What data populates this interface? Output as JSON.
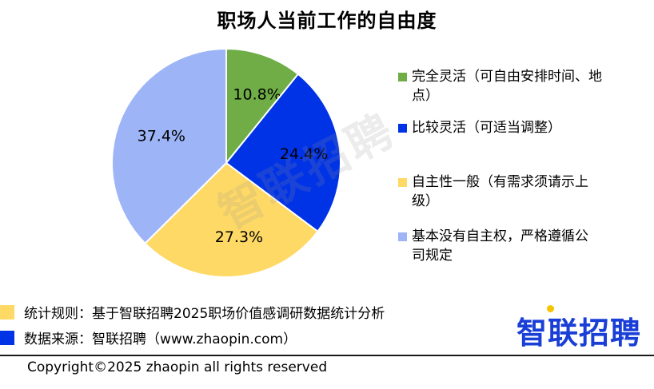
{
  "chart_data": {
    "type": "pie",
    "title": "职场人当前工作的自由度",
    "slices": [
      {
        "label": "完全灵活（可自由安排时间、地点）",
        "value": 10.8,
        "display": "10.8%",
        "color": "#70ad47"
      },
      {
        "label": "比较灵活（可适当调整）",
        "value": 24.4,
        "display": "24.4%",
        "color": "#0033e6"
      },
      {
        "label": "自主性一般（有需求须请示上级）",
        "value": 27.3,
        "display": "27.3%",
        "color": "#ffd966"
      },
      {
        "label": "基本没有自主权，严格遵循公司规定",
        "value": 37.4,
        "display": "37.4%",
        "color": "#9db4f7"
      }
    ],
    "legend_position": "right"
  },
  "watermark": "智联招聘",
  "footnotes": [
    {
      "text": "统计规则：基于智联招聘2025职场价值感调研数据统计分析",
      "color": "#ffd966"
    },
    {
      "text": "数据来源：智联招聘（www.zhaopin.com）",
      "color": "#0033e6"
    }
  ],
  "brand": {
    "logo_text": "智联招聘",
    "color": "#1a3fd6",
    "dot_color": "#f7c500"
  },
  "copyright": "Copyright©2025 zhaopin all rights reserved"
}
